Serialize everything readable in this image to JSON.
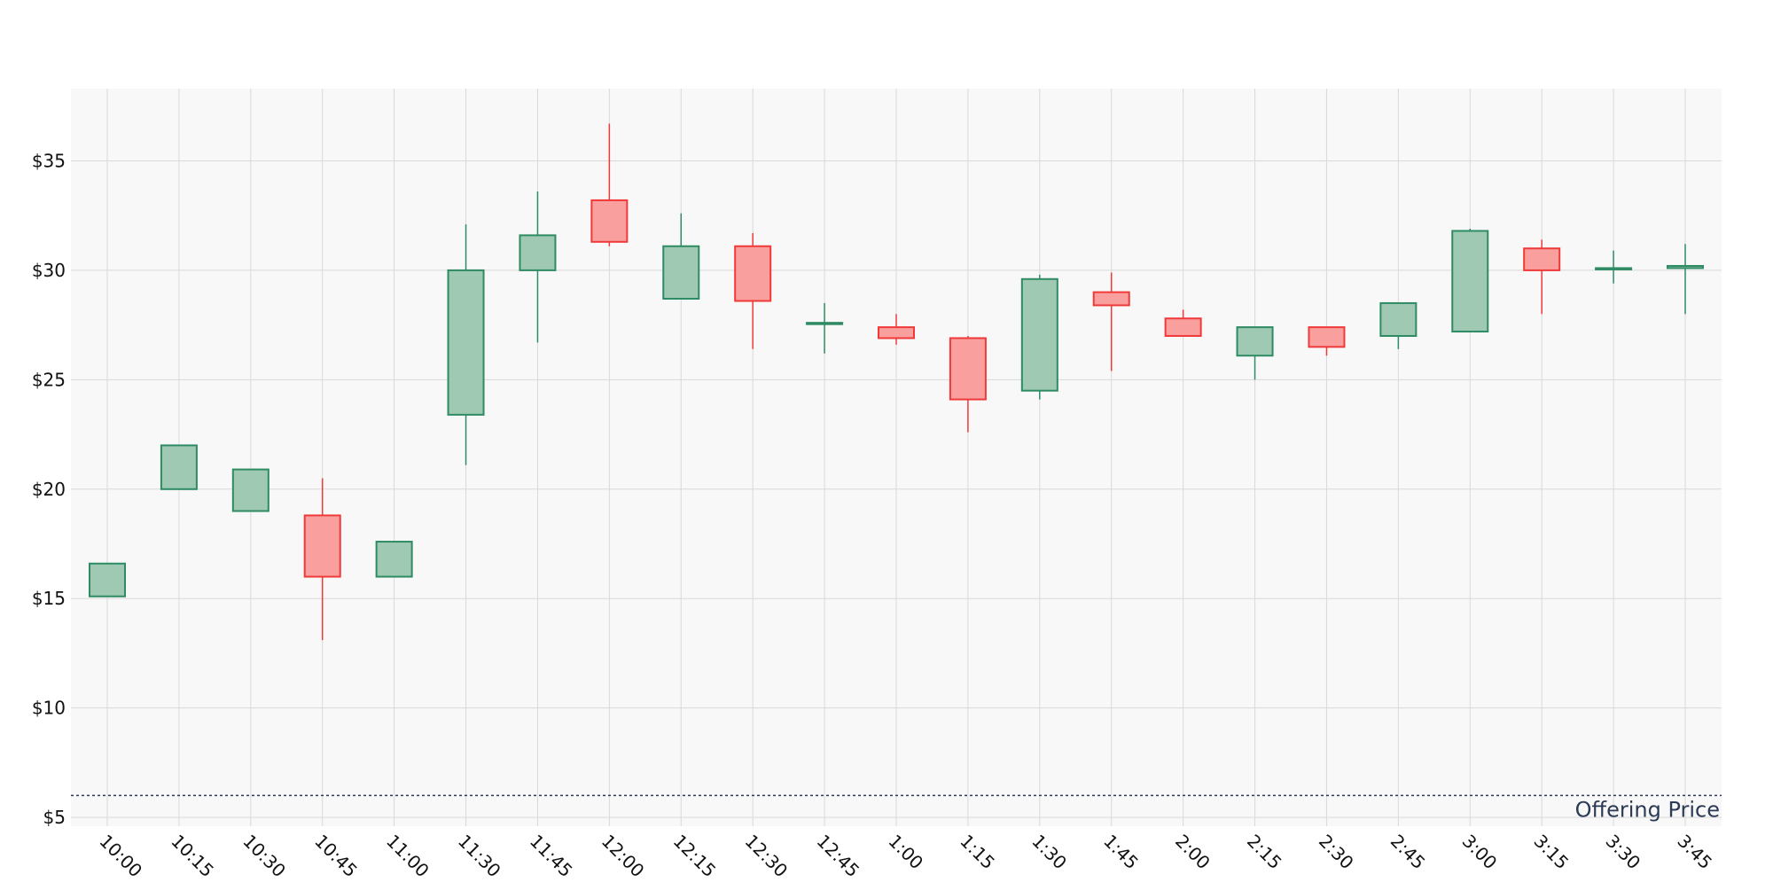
{
  "colors": {
    "up_fill": "#9fc9b3",
    "up_stroke": "#2e8b63",
    "down_fill": "#f9a09e",
    "down_stroke": "#f03a3a",
    "plot_bg": "#f8f8f8",
    "reference_line": "#2b3a55",
    "reference_label": "#2b3a55"
  },
  "chart_data": {
    "type": "candlestick",
    "title": "",
    "xlabel": "",
    "ylabel": "",
    "ylim": [
      4.6,
      38.3
    ],
    "y_ticks": [
      5,
      10,
      15,
      20,
      25,
      30,
      35
    ],
    "y_tick_prefix": "$",
    "grid": true,
    "categories": [
      "10:00",
      "10:15",
      "10:30",
      "10:45",
      "11:00",
      "11:30",
      "11:45",
      "12:00",
      "12:15",
      "12:30",
      "12:45",
      "1:00",
      "1:15",
      "1:30",
      "1:45",
      "2:00",
      "2:15",
      "2:30",
      "2:45",
      "3:00",
      "3:15",
      "3:30",
      "3:45"
    ],
    "open": [
      15.1,
      20.0,
      19.0,
      18.8,
      16.0,
      23.4,
      30.0,
      33.2,
      28.7,
      31.1,
      27.6,
      27.4,
      26.9,
      24.5,
      29.0,
      27.8,
      26.1,
      27.4,
      27.0,
      27.2,
      31.0,
      30.1,
      30.1
    ],
    "high": [
      16.6,
      22.0,
      20.9,
      20.5,
      17.6,
      32.1,
      33.6,
      36.7,
      32.6,
      31.7,
      28.5,
      28.0,
      27.0,
      29.8,
      29.9,
      28.2,
      27.4,
      27.4,
      28.5,
      31.9,
      31.4,
      30.9,
      31.2
    ],
    "low": [
      15.1,
      20.0,
      19.0,
      13.1,
      16.0,
      21.1,
      26.7,
      31.1,
      28.7,
      26.4,
      26.2,
      26.6,
      22.6,
      24.1,
      25.4,
      27.0,
      25.0,
      26.1,
      26.4,
      27.2,
      28.0,
      29.4,
      28.0
    ],
    "close": [
      16.6,
      22.0,
      20.9,
      16.0,
      17.6,
      30.0,
      31.6,
      31.3,
      31.1,
      28.6,
      27.6,
      26.9,
      24.1,
      29.6,
      28.4,
      27.0,
      27.4,
      26.5,
      28.5,
      31.8,
      30.0,
      30.1,
      30.2
    ],
    "reference_line": {
      "value": 6.0,
      "label": "Offering Price"
    }
  }
}
